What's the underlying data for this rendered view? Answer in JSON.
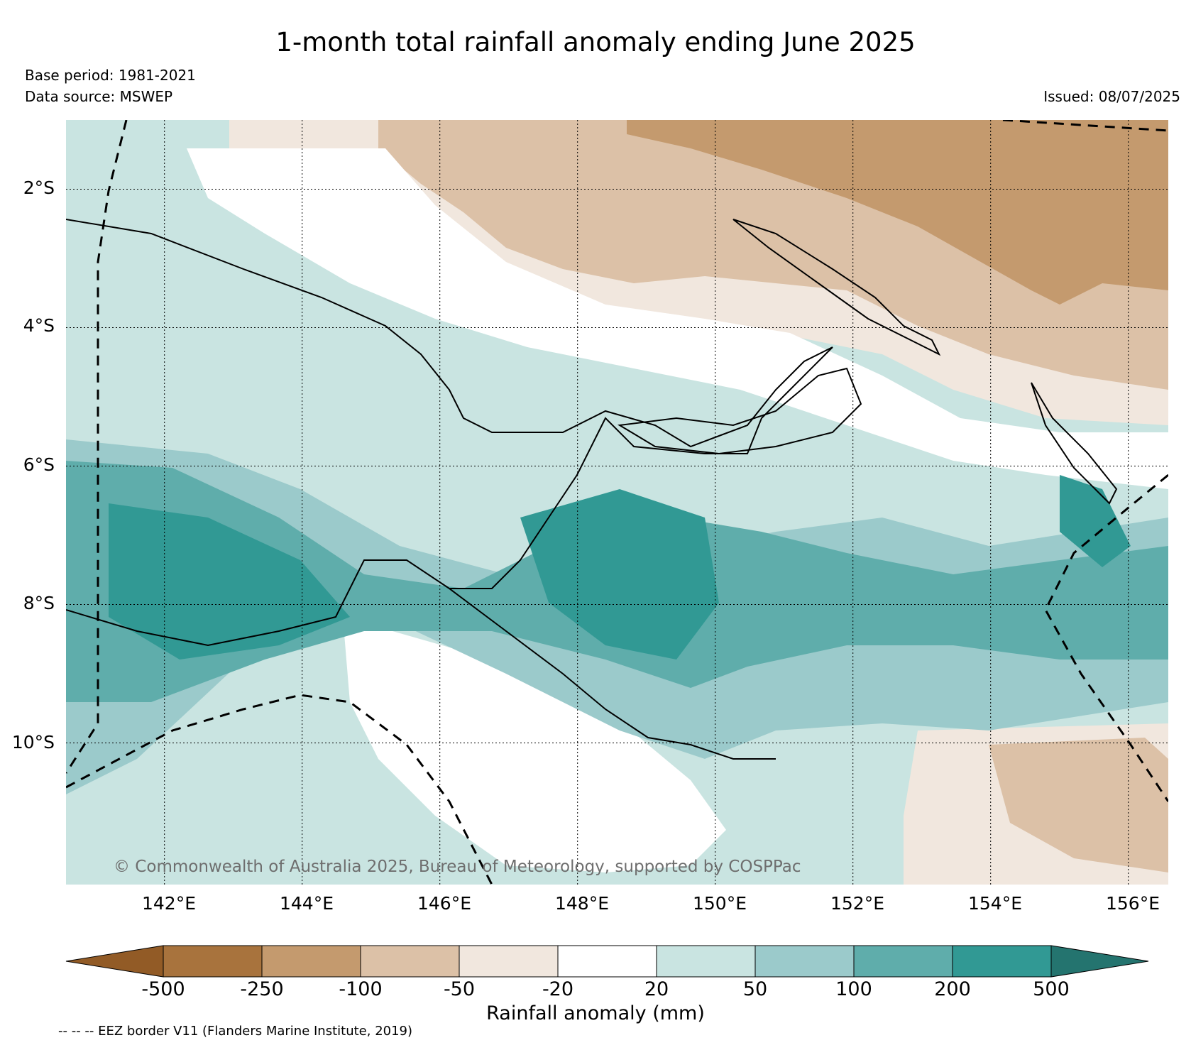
{
  "title": "1-month total rainfall anomaly ending June 2025",
  "meta": {
    "base_period": "Base period: 1981-2021",
    "data_source": "Data source: MSWEP",
    "issued": "Issued: 08/07/2025"
  },
  "map": {
    "region": "Papua New Guinea",
    "lat_labels": [
      "2°S",
      "4°S",
      "6°S",
      "8°S",
      "10°S"
    ],
    "lon_labels": [
      "142°E",
      "144°E",
      "146°E",
      "148°E",
      "150°E",
      "152°E",
      "154°E",
      "156°E"
    ],
    "lat_values": [
      -2,
      -4,
      -6,
      -8,
      -10
    ],
    "lon_values": [
      142,
      144,
      146,
      148,
      150,
      152,
      154,
      156
    ],
    "extent": {
      "lon": [
        140.5,
        156.5
      ],
      "lat": [
        -12.0,
        -1.0
      ]
    },
    "copyright": "© Commonwealth of Australia 2025, Bureau of Meteorology, supported by COSPPac"
  },
  "colorbar": {
    "title": "Rainfall anomaly (mm)",
    "ticks": [
      "-500",
      "-250",
      "-100",
      "-50",
      "-20",
      "20",
      "50",
      "100",
      "200",
      "500"
    ],
    "colors": [
      "#925b26",
      "#a8733d",
      "#c49a6e",
      "#dcc1a7",
      "#f1e7de",
      "#ffffff",
      "#c9e4e1",
      "#9bcacb",
      "#5fadab",
      "#319994",
      "#24746f"
    ]
  },
  "legend_note": "-- -- -- EEZ border V11 (Flanders Marine Institute, 2019)"
}
